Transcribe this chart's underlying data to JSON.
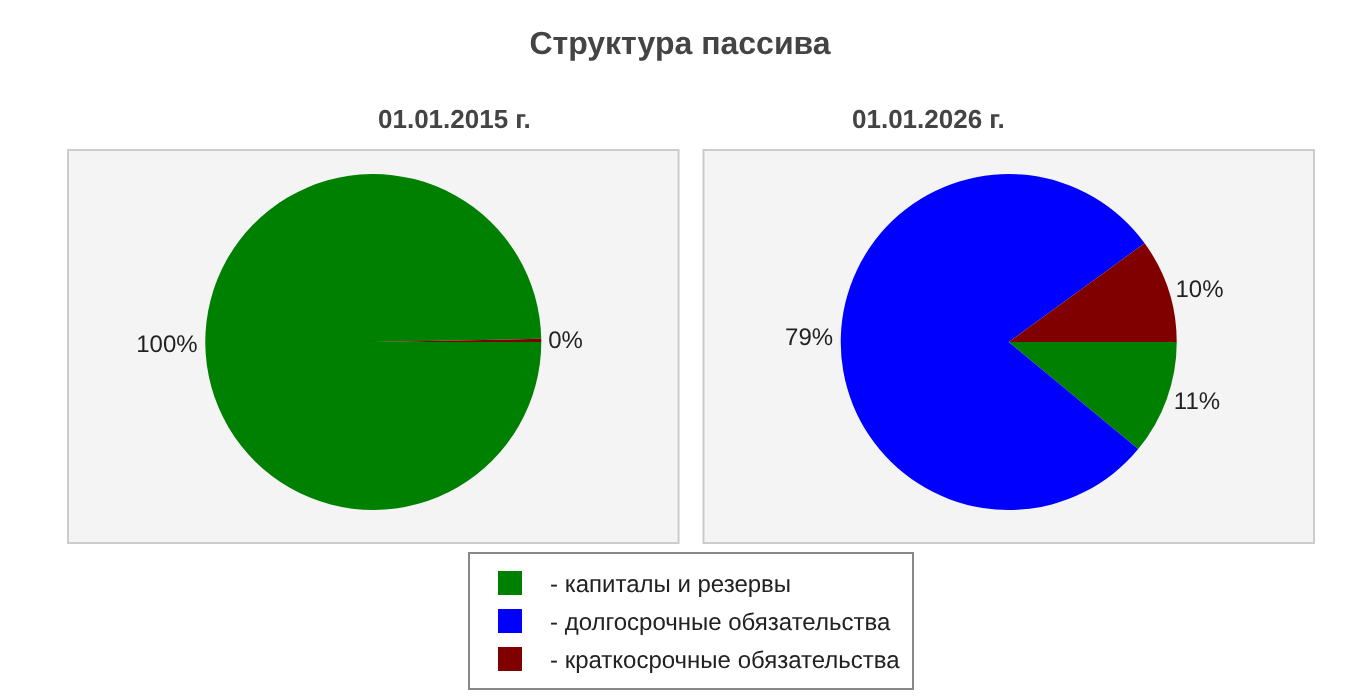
{
  "chart_data": [
    {
      "type": "pie",
      "title": "Структура пассива",
      "subtitle": "01.01.2015 г.",
      "categories": [
        "- капиталы и резервы",
        "- долгосрочные обязательства",
        "- краткосрочные обязательства"
      ],
      "values": [
        99.7,
        0,
        0.3
      ],
      "value_labels": [
        "100%",
        null,
        "0%"
      ],
      "colors": [
        "#008000",
        "#0000ff",
        "#800000"
      ],
      "legend": "bottom"
    },
    {
      "type": "pie",
      "subtitle": "01.01.2026 г.",
      "categories": [
        null,
        null,
        null
      ],
      "values": [
        11,
        79,
        10
      ],
      "value_labels": [
        "11%",
        "79%",
        "10%"
      ],
      "colors": [
        "#008000",
        "#0000ff",
        "#800000"
      ]
    }
  ]
}
